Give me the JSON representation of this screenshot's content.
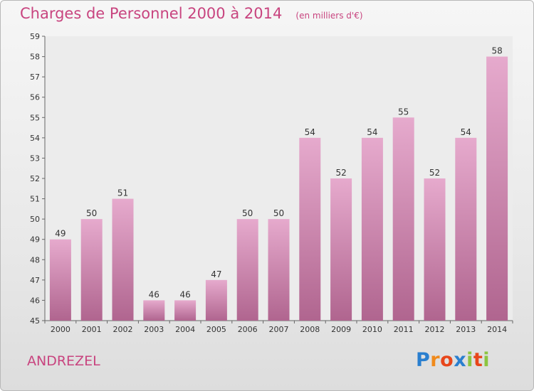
{
  "title": "Charges de Personnel 2000 à 2014",
  "unit": "(en milliers d'€)",
  "commune": "ANDREZEL",
  "logo": {
    "letters": [
      "P",
      "r",
      "o",
      "x",
      "i",
      "t",
      "i"
    ],
    "colors": [
      "#2a7fcf",
      "#f08a1c",
      "#e8461b",
      "#2a7fcf",
      "#8cc540",
      "#e8461b",
      "#8cc540"
    ]
  },
  "colors": {
    "bar_top": "#e6aacd",
    "bar_bottom": "#b0658f",
    "title": "#c8447f"
  },
  "chart_data": {
    "type": "bar",
    "categories": [
      "2000",
      "2001",
      "2002",
      "2003",
      "2004",
      "2005",
      "2006",
      "2007",
      "2008",
      "2009",
      "2010",
      "2011",
      "2012",
      "2013",
      "2014"
    ],
    "values": [
      49,
      50,
      51,
      46,
      46,
      47,
      50,
      50,
      54,
      52,
      54,
      55,
      52,
      54,
      58
    ],
    "ylim": [
      45,
      59
    ],
    "yticks": [
      45,
      46,
      47,
      48,
      49,
      50,
      51,
      52,
      53,
      54,
      55,
      56,
      57,
      58,
      59
    ],
    "grid": false,
    "data_labels": true
  }
}
